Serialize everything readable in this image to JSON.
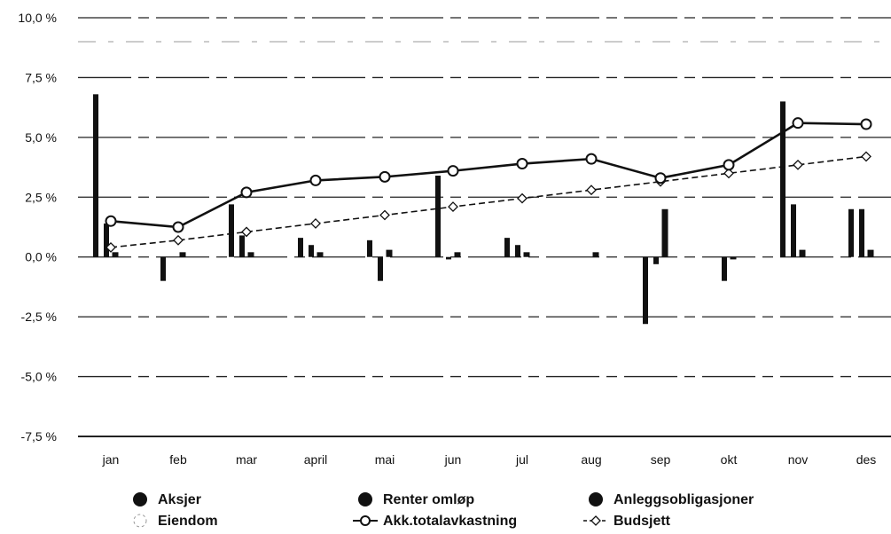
{
  "chart_data": {
    "type": "bar",
    "categories": [
      "jan",
      "feb",
      "mar",
      "april",
      "mai",
      "jun",
      "jul",
      "aug",
      "sep",
      "okt",
      "nov",
      "des"
    ],
    "ylim": [
      -7.5,
      10.0
    ],
    "yticks": [
      10.0,
      7.5,
      5.0,
      2.5,
      0.0,
      -2.5,
      -5.0,
      -7.5
    ],
    "ytick_labels": [
      "10,0 %",
      "7,5 %",
      "5,0 %",
      "2,5 %",
      "0,0 %",
      "-2,5 %",
      "-5,0 %",
      "-7,5 %"
    ],
    "grid": true,
    "legend_position": "bottom",
    "bar_series": [
      {
        "name": "Aksjer",
        "values": [
          6.8,
          -1.0,
          2.2,
          0.8,
          0.7,
          3.4,
          0.8,
          0.0,
          -2.8,
          0.0,
          6.5,
          2.0
        ]
      },
      {
        "name": "Renter omløp",
        "values": [
          1.4,
          0.0,
          0.9,
          0.5,
          -1.0,
          -0.1,
          0.5,
          0.0,
          -0.3,
          -1.0,
          2.2,
          2.0
        ]
      },
      {
        "name": "Anleggsobligasjoner",
        "values": [
          0.2,
          0.2,
          0.2,
          0.2,
          0.3,
          0.2,
          0.2,
          0.2,
          2.0,
          -0.1,
          0.3,
          0.3
        ]
      },
      {
        "name": "Eiendom",
        "values": [
          0,
          0,
          0,
          0,
          0,
          0,
          0,
          0,
          0,
          0,
          0,
          0
        ]
      }
    ],
    "line_series": [
      {
        "name": "Akk.totalavkastning",
        "values": [
          1.5,
          1.25,
          2.7,
          3.2,
          3.35,
          3.6,
          3.9,
          4.1,
          3.3,
          3.85,
          5.6,
          5.55
        ]
      },
      {
        "name": "Budsjett",
        "values": [
          0.4,
          0.7,
          1.05,
          1.4,
          1.75,
          2.1,
          2.45,
          2.8,
          3.15,
          3.5,
          3.85,
          4.2
        ]
      }
    ],
    "colors": {
      "bars": "#111111",
      "lines": "#111111",
      "grid": "#222222"
    }
  },
  "legend": [
    {
      "label": "Aksjer",
      "marker": "filled-circle"
    },
    {
      "label": "Renter omløp",
      "marker": "filled-circle"
    },
    {
      "label": "Anleggsobligasjoner",
      "marker": "filled-circle"
    },
    {
      "label": "Eiendom",
      "marker": "dashed-circle"
    },
    {
      "label": "Akk.totalavkastning",
      "marker": "line-circle"
    },
    {
      "label": "Budsjett",
      "marker": "dashed-line-diamond"
    }
  ]
}
